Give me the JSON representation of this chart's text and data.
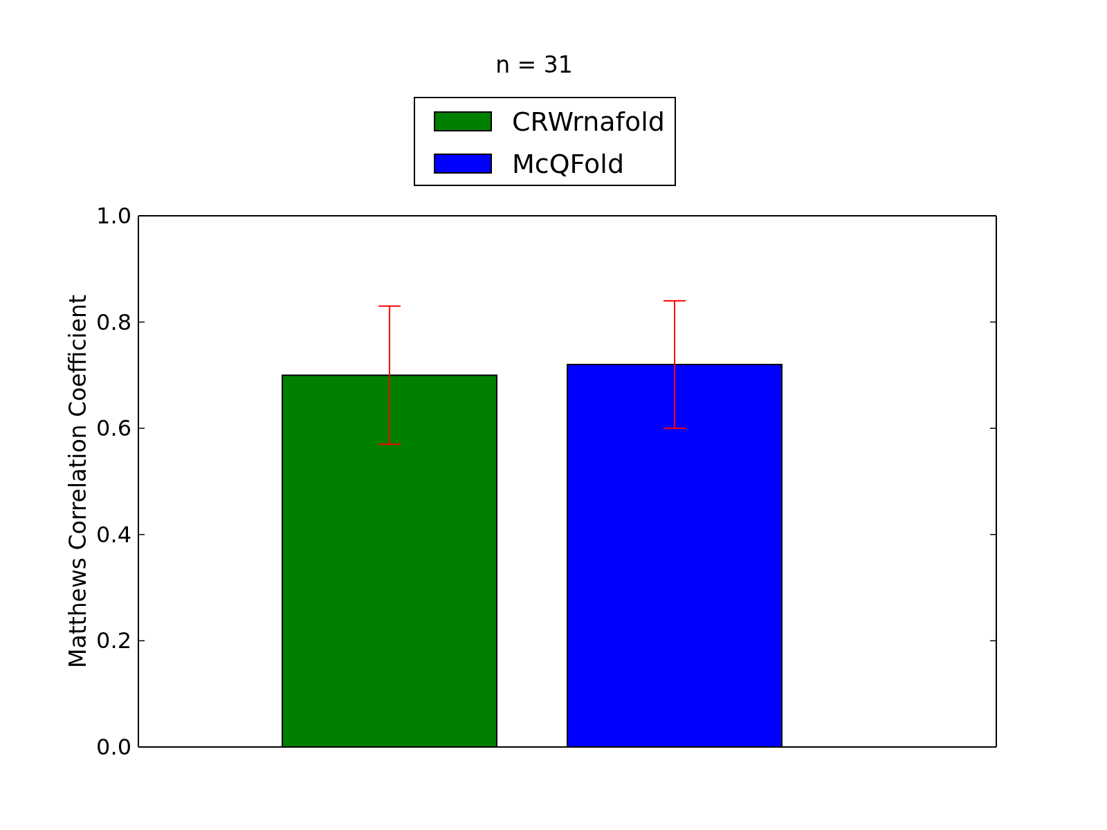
{
  "chart_data": {
    "type": "bar",
    "title": "n = 31",
    "ylabel": "Matthews Correlation Coefficient",
    "categories": [
      null
    ],
    "series": [
      {
        "name": "CRWrnafold",
        "color": "#008000",
        "values": [
          0.7
        ],
        "errors": [
          0.13
        ]
      },
      {
        "name": "McQFold",
        "color": "#0000ff",
        "values": [
          0.72
        ],
        "errors": [
          0.12
        ]
      }
    ],
    "ylim": [
      0,
      1
    ],
    "yticks": [
      {
        "value": 0,
        "label": "0.0"
      },
      0.2,
      0.4,
      0.6,
      0.8,
      {
        "value": 1,
        "label": "1.0"
      }
    ],
    "legend": "top",
    "tick_labels": "y"
  }
}
